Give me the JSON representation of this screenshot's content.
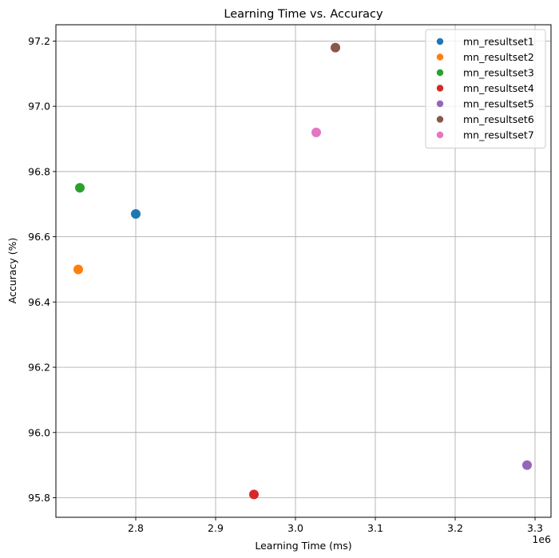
{
  "chart_data": {
    "type": "scatter",
    "title": "Learning Time vs. Accuracy",
    "xlabel": "Learning Time (ms)",
    "ylabel": "Accuracy (%)",
    "x_offset_label": "1e6",
    "xlim": [
      2.7,
      3.32
    ],
    "ylim": [
      95.74,
      97.25
    ],
    "x_ticks": [
      2.8,
      2.9,
      3.0,
      3.1,
      3.2,
      3.3
    ],
    "x_tick_labels": [
      "2.8",
      "2.9",
      "3.0",
      "3.1",
      "3.2",
      "3.3"
    ],
    "y_ticks": [
      95.8,
      96.0,
      96.2,
      96.4,
      96.6,
      96.8,
      97.0,
      97.2
    ],
    "y_tick_labels": [
      "95.8",
      "96.0",
      "96.2",
      "96.4",
      "96.6",
      "96.8",
      "97.0",
      "97.2"
    ],
    "grid": true,
    "legend_position": "top-right",
    "series": [
      {
        "name": "mn_resultset1",
        "color": "#1f77b4",
        "points": [
          {
            "x": 2.8,
            "y": 96.67
          }
        ]
      },
      {
        "name": "mn_resultset2",
        "color": "#ff7f0e",
        "points": [
          {
            "x": 2.728,
            "y": 96.5
          }
        ]
      },
      {
        "name": "mn_resultset3",
        "color": "#2ca02c",
        "points": [
          {
            "x": 2.73,
            "y": 96.75
          }
        ]
      },
      {
        "name": "mn_resultset4",
        "color": "#d62728",
        "points": [
          {
            "x": 2.948,
            "y": 95.81
          }
        ]
      },
      {
        "name": "mn_resultset5",
        "color": "#9467bd",
        "points": [
          {
            "x": 3.29,
            "y": 95.9
          }
        ]
      },
      {
        "name": "mn_resultset6",
        "color": "#8c564b",
        "points": [
          {
            "x": 3.05,
            "y": 97.18
          }
        ]
      },
      {
        "name": "mn_resultset7",
        "color": "#e377c2",
        "points": [
          {
            "x": 3.026,
            "y": 96.92
          }
        ]
      }
    ]
  }
}
